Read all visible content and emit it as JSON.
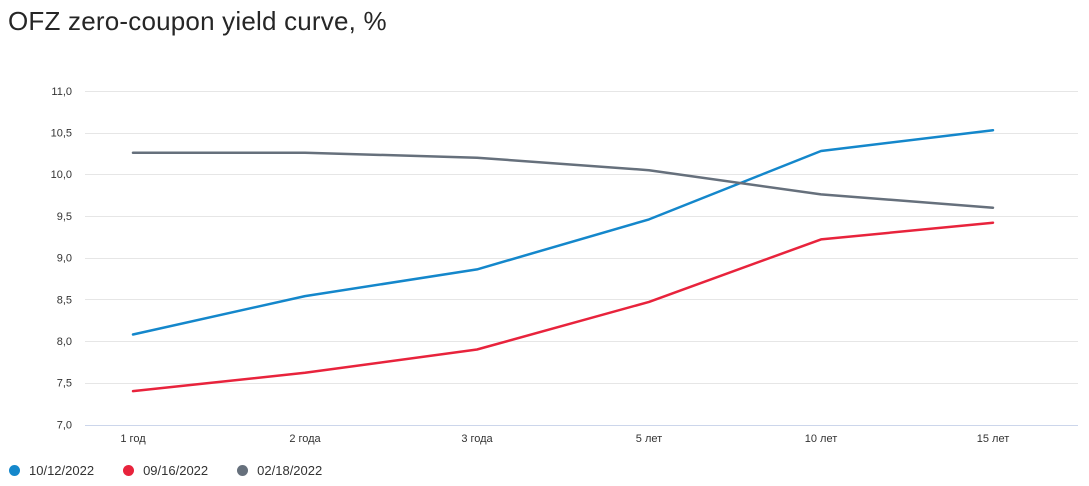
{
  "title": "OFZ zero-coupon yield curve, %",
  "chart_data": {
    "type": "line",
    "categories": [
      "1 год",
      "2 года",
      "3 года",
      "5 лет",
      "10 лет",
      "15 лет"
    ],
    "series": [
      {
        "name": "10/12/2022",
        "color": "#1487cb",
        "values": [
          8.08,
          8.54,
          8.86,
          9.46,
          10.28,
          10.53
        ]
      },
      {
        "name": "09/16/2022",
        "color": "#e8233c",
        "values": [
          7.4,
          7.62,
          7.9,
          8.47,
          9.22,
          9.42
        ]
      },
      {
        "name": "02/18/2022",
        "color": "#66707c",
        "values": [
          10.26,
          10.26,
          10.2,
          10.05,
          9.76,
          9.6
        ]
      }
    ],
    "ylim": [
      7.0,
      11.0
    ],
    "ytick_step": 0.5,
    "ytick_labels": [
      "7,0",
      "7,5",
      "8,0",
      "8,5",
      "9,0",
      "9,5",
      "10,0",
      "10,5",
      "11,0"
    ],
    "grid": "horizontal-only",
    "grid_color": "#e6e6e6",
    "axis_line_color": "#ccd6eb",
    "legend_position": "bottom-left"
  }
}
